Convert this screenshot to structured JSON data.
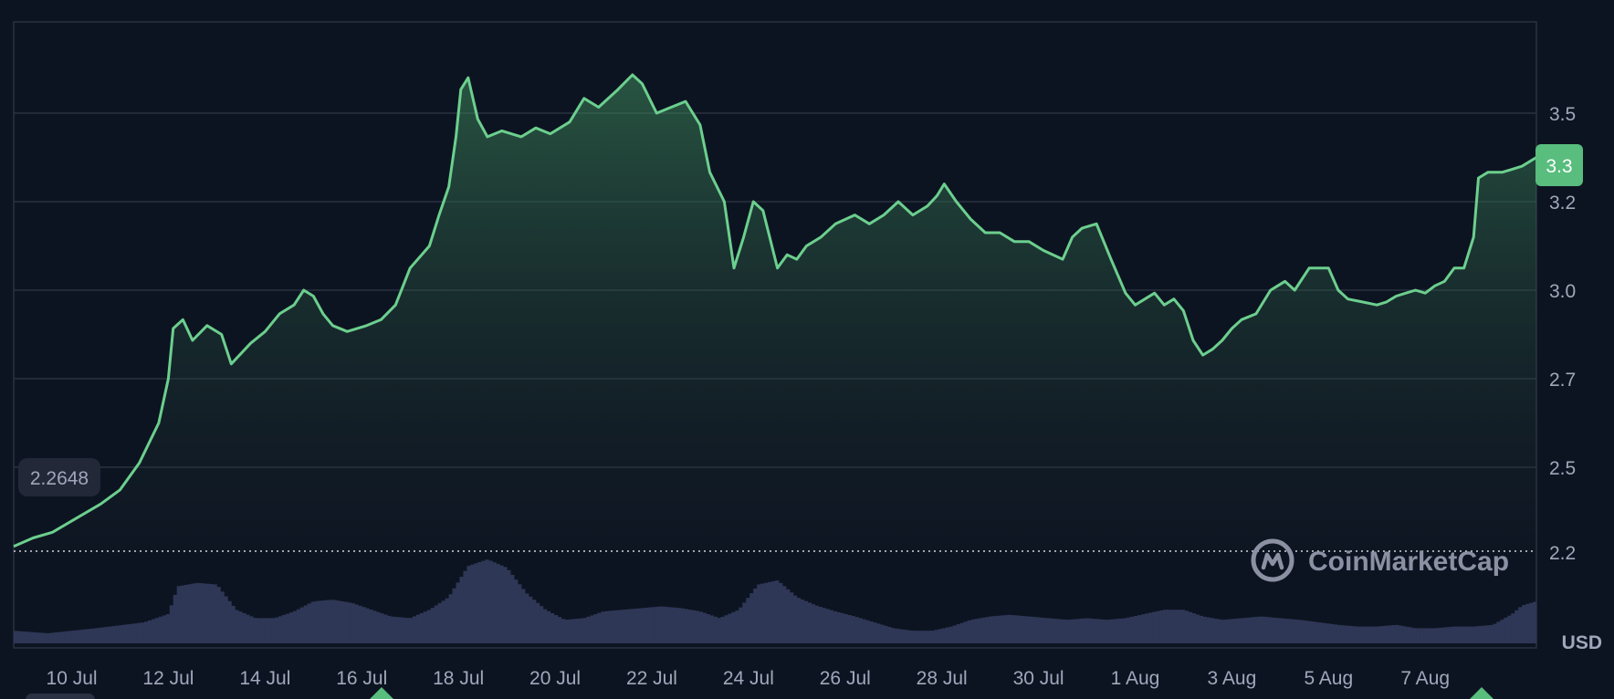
{
  "chart_data": {
    "type": "area",
    "unit": "USD",
    "start_value_label": "2.2648",
    "current_value_label": "3.3",
    "watermark": "CoinMarketCap",
    "colors": {
      "background": "#0d1421",
      "line": "#6ccf8e",
      "grid": "#2a3240",
      "volume": "#2e3756",
      "axis_text": "#a1a7bb",
      "badge_bg": "#58bd7d",
      "start_badge_bg": "#222838"
    },
    "yaxis": {
      "ticks": [
        2.2,
        2.5,
        2.7,
        3.0,
        3.2,
        3.5
      ],
      "tick_labels": [
        "2.2",
        "2.5",
        "2.7",
        "3.0",
        "3.2",
        "3.5"
      ],
      "range": [
        2.2,
        3.7
      ]
    },
    "xaxis": {
      "start_day": 8.8,
      "end_day": 40.3,
      "ticks": [
        {
          "label": "10 Jul",
          "day": 10
        },
        {
          "label": "12 Jul",
          "day": 12
        },
        {
          "label": "14 Jul",
          "day": 14
        },
        {
          "label": "16 Jul",
          "day": 16
        },
        {
          "label": "18 Jul",
          "day": 18
        },
        {
          "label": "20 Jul",
          "day": 20
        },
        {
          "label": "22 Jul",
          "day": 22
        },
        {
          "label": "24 Jul",
          "day": 24
        },
        {
          "label": "26 Jul",
          "day": 26
        },
        {
          "label": "28 Jul",
          "day": 28
        },
        {
          "label": "30 Jul",
          "day": 30
        },
        {
          "label": "1 Aug",
          "day": 32
        },
        {
          "label": "3 Aug",
          "day": 34
        },
        {
          "label": "5 Aug",
          "day": 36
        },
        {
          "label": "7 Aug",
          "day": 38
        }
      ]
    },
    "series": [
      {
        "x": [
          8.8,
          9.2,
          9.6,
          10.1,
          10.6,
          11.0,
          11.4,
          11.8,
          12.0,
          12.1,
          12.3,
          12.5,
          12.8,
          13.1,
          13.3,
          13.7,
          14.0,
          14.3,
          14.6,
          14.8,
          15.0,
          15.2,
          15.4,
          15.7,
          16.1,
          16.4,
          16.7,
          17.0,
          17.4,
          17.6,
          17.8,
          17.95,
          18.05,
          18.2,
          18.4,
          18.6,
          18.9,
          19.3,
          19.6,
          19.9,
          20.3,
          20.6,
          20.9,
          21.3,
          21.6,
          21.8,
          22.1,
          22.4,
          22.7,
          23.0,
          23.2,
          23.5,
          23.7,
          23.9,
          24.1,
          24.3,
          24.6,
          24.8,
          25.0,
          25.2,
          25.5,
          25.8,
          26.2,
          26.5,
          26.8,
          27.1,
          27.4,
          27.7,
          27.9,
          28.05,
          28.3,
          28.6,
          28.9,
          29.2,
          29.5,
          29.8,
          30.1,
          30.5,
          30.7,
          30.9,
          31.2,
          31.5,
          31.8,
          32.0,
          32.2,
          32.4,
          32.6,
          32.8,
          33.0,
          33.2,
          33.4,
          33.6,
          33.8,
          34.0,
          34.2,
          34.5,
          34.8,
          35.1,
          35.3,
          35.6,
          36.0,
          36.2,
          36.4,
          36.7,
          37.0,
          37.2,
          37.4,
          37.6,
          37.8,
          38.0,
          38.2,
          38.4,
          38.6,
          38.8,
          39.0,
          39.1,
          39.2,
          39.3,
          39.6,
          40.0,
          40.3
        ],
        "y": [
          2.22,
          2.25,
          2.27,
          2.32,
          2.37,
          2.42,
          2.51,
          2.6,
          2.7,
          2.87,
          2.9,
          2.83,
          2.88,
          2.85,
          2.75,
          2.82,
          2.86,
          2.92,
          2.95,
          3.0,
          2.98,
          2.92,
          2.88,
          2.86,
          2.88,
          2.9,
          2.95,
          3.05,
          3.1,
          3.17,
          3.25,
          3.42,
          3.58,
          3.62,
          3.48,
          3.42,
          3.44,
          3.42,
          3.45,
          3.43,
          3.47,
          3.55,
          3.52,
          3.58,
          3.63,
          3.6,
          3.5,
          3.52,
          3.54,
          3.46,
          3.3,
          3.2,
          3.05,
          3.12,
          3.2,
          3.18,
          3.05,
          3.08,
          3.07,
          3.1,
          3.12,
          3.15,
          3.17,
          3.15,
          3.17,
          3.2,
          3.17,
          3.19,
          3.22,
          3.26,
          3.2,
          3.16,
          3.13,
          3.13,
          3.11,
          3.11,
          3.09,
          3.07,
          3.12,
          3.14,
          3.15,
          3.07,
          2.99,
          2.95,
          2.97,
          2.99,
          2.95,
          2.97,
          2.93,
          2.83,
          2.78,
          2.8,
          2.83,
          2.87,
          2.9,
          2.92,
          3.0,
          3.02,
          3.0,
          3.05,
          3.05,
          3.0,
          2.97,
          2.96,
          2.95,
          2.96,
          2.98,
          2.99,
          3.0,
          2.99,
          3.01,
          3.02,
          3.05,
          3.05,
          3.12,
          3.28,
          3.29,
          3.3,
          3.3,
          3.32,
          3.35
        ]
      }
    ],
    "volume": {
      "x": [
        8.8,
        9.5,
        10.5,
        11.5,
        12.0,
        12.2,
        12.6,
        13.0,
        13.4,
        13.8,
        14.2,
        14.6,
        15.0,
        15.4,
        15.8,
        16.2,
        16.6,
        17.0,
        17.4,
        17.8,
        18.2,
        18.6,
        19.0,
        19.4,
        19.8,
        20.2,
        20.6,
        21.0,
        21.4,
        21.8,
        22.2,
        22.6,
        23.0,
        23.4,
        23.8,
        24.2,
        24.6,
        25.0,
        25.4,
        25.8,
        26.2,
        26.6,
        27.0,
        27.4,
        27.8,
        28.2,
        28.6,
        29.0,
        29.4,
        29.8,
        30.2,
        30.6,
        31.0,
        31.4,
        31.8,
        32.2,
        32.6,
        33.0,
        33.4,
        33.8,
        34.2,
        34.6,
        35.0,
        35.4,
        35.8,
        36.2,
        36.6,
        37.0,
        37.4,
        37.8,
        38.2,
        38.6,
        39.0,
        39.4,
        39.8,
        40.0,
        40.3
      ],
      "y": [
        0.15,
        0.12,
        0.18,
        0.25,
        0.35,
        0.68,
        0.72,
        0.7,
        0.4,
        0.3,
        0.3,
        0.38,
        0.5,
        0.52,
        0.48,
        0.4,
        0.32,
        0.3,
        0.4,
        0.55,
        0.92,
        1.0,
        0.9,
        0.6,
        0.4,
        0.28,
        0.3,
        0.38,
        0.4,
        0.42,
        0.44,
        0.42,
        0.38,
        0.3,
        0.4,
        0.7,
        0.75,
        0.55,
        0.45,
        0.38,
        0.32,
        0.25,
        0.18,
        0.15,
        0.15,
        0.2,
        0.28,
        0.32,
        0.34,
        0.32,
        0.3,
        0.28,
        0.3,
        0.28,
        0.3,
        0.35,
        0.4,
        0.4,
        0.32,
        0.28,
        0.3,
        0.32,
        0.3,
        0.28,
        0.25,
        0.22,
        0.2,
        0.2,
        0.22,
        0.18,
        0.18,
        0.2,
        0.2,
        0.22,
        0.35,
        0.45,
        0.5
      ]
    }
  }
}
